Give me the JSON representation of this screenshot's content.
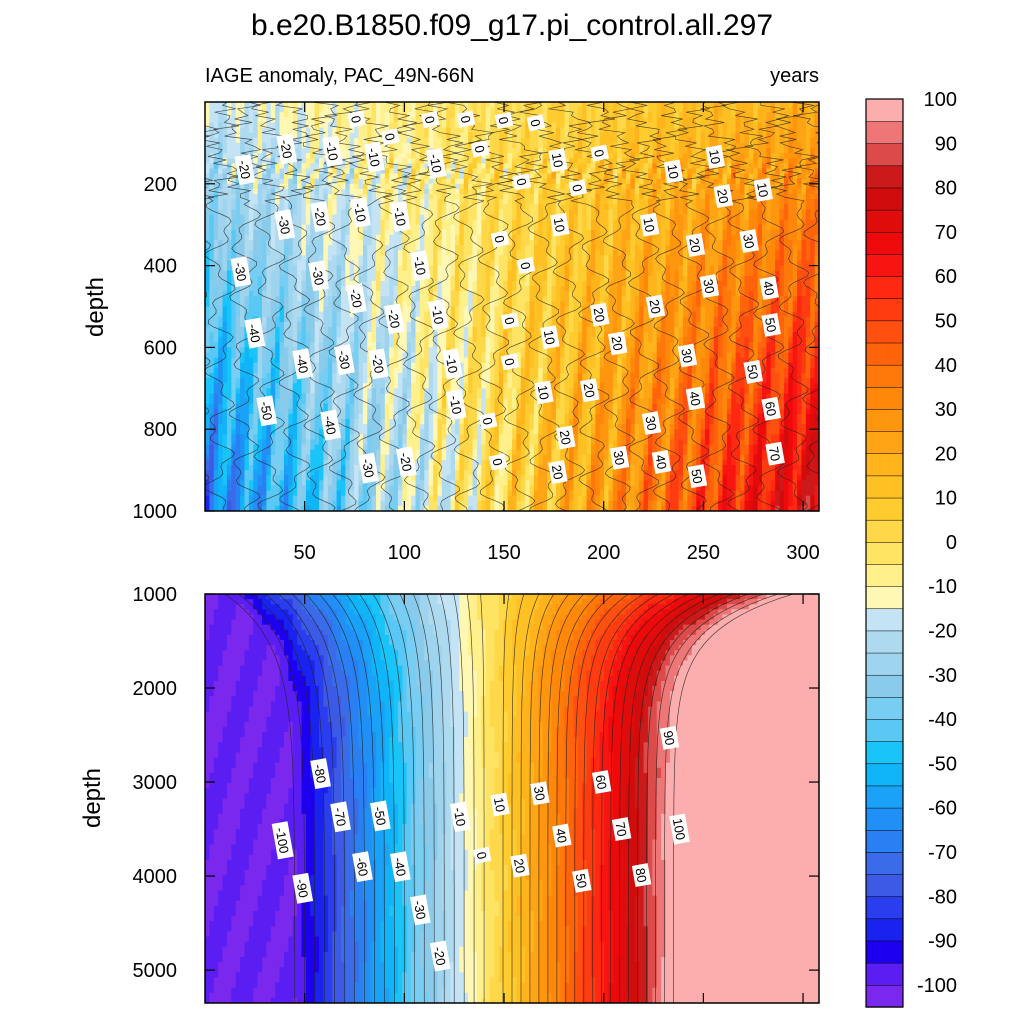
{
  "title": "b.e20.B1850.f09_g17.pi_control.all.297",
  "chart_data": [
    {
      "type": "contour",
      "panel": "upper",
      "subtitle_left": "IAGE anomaly, PAC_49N-66N",
      "subtitle_right": "years",
      "ylabel": "depth",
      "xlim": [
        0,
        308
      ],
      "ylim": [
        1000,
        0
      ],
      "x_ticks": [
        "50",
        "100",
        "150",
        "200",
        "250",
        "300"
      ],
      "y_ticks": [
        "200",
        "400",
        "600",
        "800",
        "1000"
      ],
      "contour_labels": [
        {
          "text": "0",
          "x": 76,
          "y": 42
        },
        {
          "text": "0",
          "x": 93,
          "y": 85
        },
        {
          "text": "0",
          "x": 113,
          "y": 43
        },
        {
          "text": "0",
          "x": 131,
          "y": 42
        },
        {
          "text": "0",
          "x": 150,
          "y": 45
        },
        {
          "text": "0",
          "x": 166,
          "y": 51
        },
        {
          "text": "0",
          "x": 138,
          "y": 115
        },
        {
          "text": "0",
          "x": 198,
          "y": 125
        },
        {
          "text": "0",
          "x": 159,
          "y": 195
        },
        {
          "text": "0",
          "x": 187,
          "y": 210
        },
        {
          "text": "0",
          "x": 148,
          "y": 335
        },
        {
          "text": "0",
          "x": 161,
          "y": 400
        },
        {
          "text": "0",
          "x": 153,
          "y": 535
        },
        {
          "text": "0",
          "x": 153,
          "y": 635
        },
        {
          "text": "0",
          "x": 142,
          "y": 780
        },
        {
          "text": "0",
          "x": 147,
          "y": 880
        },
        {
          "text": "10",
          "x": 177,
          "y": 142
        },
        {
          "text": "10",
          "x": 256,
          "y": 134
        },
        {
          "text": "10",
          "x": 235,
          "y": 170
        },
        {
          "text": "10",
          "x": 280,
          "y": 215
        },
        {
          "text": "10",
          "x": 178,
          "y": 300
        },
        {
          "text": "10",
          "x": 223,
          "y": 300
        },
        {
          "text": "10",
          "x": 173,
          "y": 575
        },
        {
          "text": "10",
          "x": 170,
          "y": 710
        },
        {
          "text": "20",
          "x": 260,
          "y": 230
        },
        {
          "text": "20",
          "x": 246,
          "y": 350
        },
        {
          "text": "20",
          "x": 226,
          "y": 500
        },
        {
          "text": "20",
          "x": 198,
          "y": 520
        },
        {
          "text": "20",
          "x": 207,
          "y": 590
        },
        {
          "text": "20",
          "x": 193,
          "y": 705
        },
        {
          "text": "20",
          "x": 181,
          "y": 820
        },
        {
          "text": "20",
          "x": 177,
          "y": 905
        },
        {
          "text": "30",
          "x": 273,
          "y": 340
        },
        {
          "text": "30",
          "x": 253,
          "y": 450
        },
        {
          "text": "30",
          "x": 242,
          "y": 620
        },
        {
          "text": "30",
          "x": 224,
          "y": 785
        },
        {
          "text": "30",
          "x": 208,
          "y": 870
        },
        {
          "text": "40",
          "x": 283,
          "y": 455
        },
        {
          "text": "40",
          "x": 246,
          "y": 725
        },
        {
          "text": "40",
          "x": 229,
          "y": 880
        },
        {
          "text": "50",
          "x": 284,
          "y": 545
        },
        {
          "text": "50",
          "x": 275,
          "y": 660
        },
        {
          "text": "50",
          "x": 247,
          "y": 915
        },
        {
          "text": "60",
          "x": 284,
          "y": 750
        },
        {
          "text": "70",
          "x": 286,
          "y": 860
        },
        {
          "text": "-10",
          "x": 64,
          "y": 120
        },
        {
          "text": "-10",
          "x": 85,
          "y": 135
        },
        {
          "text": "-10",
          "x": 116,
          "y": 150
        },
        {
          "text": "-10",
          "x": 78,
          "y": 270
        },
        {
          "text": "-10",
          "x": 98,
          "y": 280
        },
        {
          "text": "-10",
          "x": 108,
          "y": 400
        },
        {
          "text": "-10",
          "x": 117,
          "y": 520
        },
        {
          "text": "-10",
          "x": 124,
          "y": 640
        },
        {
          "text": "-10",
          "x": 126,
          "y": 740
        },
        {
          "text": "-20",
          "x": 41,
          "y": 115
        },
        {
          "text": "-20",
          "x": 20,
          "y": 165
        },
        {
          "text": "-20",
          "x": 58,
          "y": 280
        },
        {
          "text": "-20",
          "x": 76,
          "y": 480
        },
        {
          "text": "-20",
          "x": 95,
          "y": 530
        },
        {
          "text": "-20",
          "x": 87,
          "y": 640
        },
        {
          "text": "-20",
          "x": 101,
          "y": 880
        },
        {
          "text": "-30",
          "x": 40,
          "y": 300
        },
        {
          "text": "-30",
          "x": 18,
          "y": 415
        },
        {
          "text": "-30",
          "x": 57,
          "y": 425
        },
        {
          "text": "-30",
          "x": 70,
          "y": 630
        },
        {
          "text": "-30",
          "x": 82,
          "y": 895
        },
        {
          "text": "-40",
          "x": 25,
          "y": 565
        },
        {
          "text": "-40",
          "x": 49,
          "y": 640
        },
        {
          "text": "-40",
          "x": 63,
          "y": 790
        },
        {
          "text": "-50",
          "x": 31,
          "y": 755
        }
      ]
    },
    {
      "type": "contour",
      "panel": "lower",
      "ylabel": "depth",
      "xlim": [
        0,
        308
      ],
      "ylim": [
        5350,
        1000
      ],
      "y_ticks": [
        "1000",
        "2000",
        "3000",
        "4000",
        "5000"
      ],
      "contour_labels": [
        {
          "text": "-100",
          "x": 39,
          "y": 3620
        },
        {
          "text": "-90",
          "x": 49,
          "y": 4130
        },
        {
          "text": "-80",
          "x": 58,
          "y": 2910
        },
        {
          "text": "-70",
          "x": 68,
          "y": 3370
        },
        {
          "text": "-60",
          "x": 79,
          "y": 3900
        },
        {
          "text": "-50",
          "x": 88,
          "y": 3360
        },
        {
          "text": "-40",
          "x": 98,
          "y": 3900
        },
        {
          "text": "-30",
          "x": 108,
          "y": 4360
        },
        {
          "text": "-20",
          "x": 118,
          "y": 4850
        },
        {
          "text": "-10",
          "x": 128,
          "y": 3370
        },
        {
          "text": "0",
          "x": 139,
          "y": 3780
        },
        {
          "text": "10",
          "x": 148,
          "y": 3240
        },
        {
          "text": "20",
          "x": 158,
          "y": 3890
        },
        {
          "text": "30",
          "x": 168,
          "y": 3120
        },
        {
          "text": "40",
          "x": 179,
          "y": 3570
        },
        {
          "text": "50",
          "x": 189,
          "y": 4050
        },
        {
          "text": "60",
          "x": 199,
          "y": 3000
        },
        {
          "text": "70",
          "x": 209,
          "y": 3500
        },
        {
          "text": "80",
          "x": 219,
          "y": 3990
        },
        {
          "text": "90",
          "x": 233,
          "y": 2530
        },
        {
          "text": "100",
          "x": 238,
          "y": 3500
        }
      ]
    },
    {
      "type": "colorbar",
      "levels": [
        -105,
        -100,
        -95,
        -90,
        -85,
        -80,
        -75,
        -70,
        -65,
        -60,
        -55,
        -50,
        -45,
        -40,
        -35,
        -30,
        -25,
        -20,
        -15,
        -10,
        -5,
        0,
        5,
        10,
        15,
        20,
        25,
        30,
        35,
        40,
        45,
        50,
        55,
        60,
        65,
        70,
        75,
        80,
        85,
        90,
        95,
        100,
        105
      ],
      "labels": [
        "100",
        "90",
        "80",
        "70",
        "60",
        "50",
        "40",
        "30",
        "20",
        "10",
        "0",
        "-10",
        "-20",
        "-30",
        "-40",
        "-50",
        "-60",
        "-70",
        "-80",
        "-90",
        "-100"
      ],
      "colors": [
        "#7b28ee",
        "#5a1ef2",
        "#1e00f0",
        "#1a22f0",
        "#2a3ef0",
        "#3c5ae6",
        "#3a6cea",
        "#2a80f2",
        "#2090f6",
        "#19a2f8",
        "#10b4f8",
        "#18c4f8",
        "#5ac8f4",
        "#78cef2",
        "#8acaea",
        "#9ed4ee",
        "#aedaf0",
        "#c4e4f6",
        "#fff8b4",
        "#fff08c",
        "#ffe464",
        "#ffd84a",
        "#ffcc30",
        "#ffc024",
        "#ffb41c",
        "#ffa414",
        "#ff960e",
        "#ff880a",
        "#ff780a",
        "#ff640a",
        "#ff5010",
        "#ff3c10",
        "#ff2810",
        "#f81410",
        "#ee0a0a",
        "#e00c0c",
        "#d00c0c",
        "#cc1a1a",
        "#dc4a4a",
        "#ee7676",
        "#fcaeae"
      ]
    }
  ]
}
